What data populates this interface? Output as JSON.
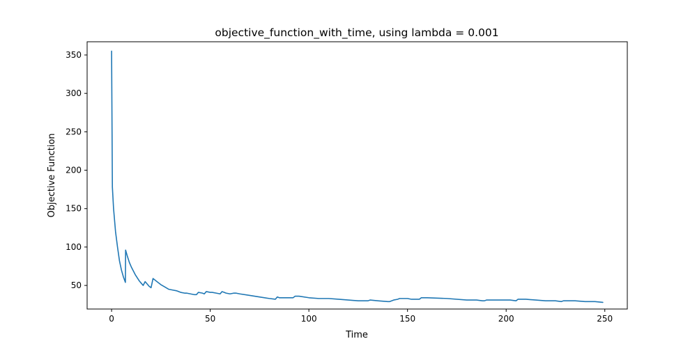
{
  "chart_data": {
    "type": "line",
    "title": "objective_function_with_time, using lambda = 0.001",
    "xlabel": "Time",
    "ylabel": "Objective Function",
    "xlim": [
      -12.4,
      261.4
    ],
    "ylim": [
      19.3,
      367.2
    ],
    "xticks": [
      0,
      50,
      100,
      150,
      200,
      250
    ],
    "yticks": [
      50,
      100,
      150,
      200,
      250,
      300,
      350
    ],
    "grid": false,
    "line_color": "#1f77b4",
    "series": [
      {
        "x": [
          0,
          0.4,
          1,
          2,
          3,
          4,
          5,
          6,
          7,
          7.1,
          8,
          9,
          10,
          11,
          12,
          13,
          14,
          15,
          16,
          17,
          18,
          19,
          20,
          21,
          23,
          25,
          27,
          29,
          31,
          33,
          35,
          37,
          38,
          40,
          42,
          43,
          44,
          46,
          47,
          48,
          50,
          51,
          53,
          55,
          56,
          57,
          58,
          60,
          62,
          63,
          65,
          70,
          75,
          80,
          83,
          84,
          85,
          86,
          88,
          89,
          91,
          92,
          93,
          95,
          100,
          105,
          107,
          110,
          115,
          120,
          125,
          130,
          131,
          135,
          140,
          141,
          143,
          145,
          146,
          150,
          152,
          153,
          155,
          156,
          157,
          160,
          170,
          180,
          182,
          185,
          188,
          189,
          190,
          195,
          198,
          199,
          202,
          205,
          206,
          210,
          215,
          220,
          225,
          228,
          229,
          235,
          240,
          245,
          249
        ],
        "values": [
          355,
          178,
          150,
          120,
          100,
          82,
          70,
          61,
          54,
          96,
          88,
          80,
          74,
          69,
          64,
          60,
          56,
          53,
          50,
          55,
          52,
          49,
          47,
          59,
          55,
          51,
          48,
          45,
          44,
          43,
          41,
          40,
          40,
          39,
          38,
          38,
          41,
          40,
          39,
          42,
          41,
          41,
          40,
          39,
          42,
          41,
          40,
          39,
          40,
          40,
          39,
          37,
          35,
          33,
          32,
          35,
          34,
          34,
          34,
          34,
          34,
          34,
          36,
          36,
          34,
          33,
          33,
          33,
          32,
          31,
          30,
          30,
          31,
          30,
          29,
          29,
          31,
          32,
          33,
          33,
          32,
          32,
          32,
          32,
          34,
          34,
          33,
          31,
          31,
          31,
          30,
          30,
          31,
          31,
          31,
          31,
          31,
          30,
          32,
          32,
          31,
          30,
          30,
          29,
          30,
          30,
          29,
          29,
          28
        ]
      }
    ]
  }
}
